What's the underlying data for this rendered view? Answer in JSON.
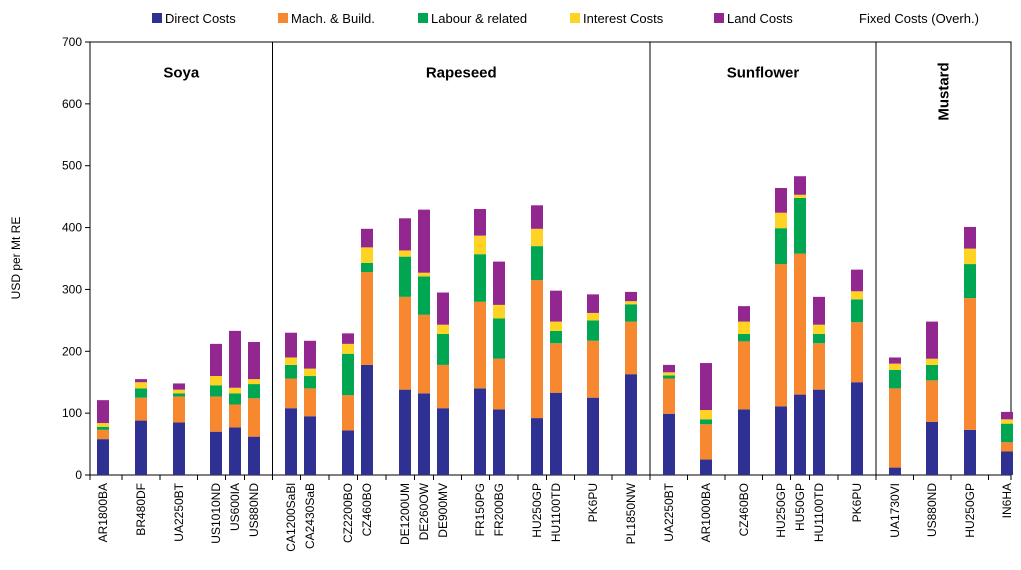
{
  "chart_data": {
    "type": "bar",
    "stacked": true,
    "ylabel": "USD per Mt RE",
    "ylim": [
      0,
      700
    ],
    "yticks": [
      0,
      100,
      200,
      300,
      400,
      500,
      600,
      700
    ],
    "grid": false,
    "legend_position": "top",
    "legend": [
      "Direct Costs",
      "Mach. & Build.",
      "Labour & related",
      "Interest Costs",
      "Land Costs",
      "Fixed Costs (Overh.)"
    ],
    "colors": [
      "#2e3192",
      "#f7882f",
      "#00a651",
      "#ffd324",
      "#92278f",
      "#ffffff"
    ],
    "groups": [
      {
        "name": "Soya",
        "label_rotated": false,
        "start": 0,
        "end": 6
      },
      {
        "name": "Rapeseed",
        "label_rotated": false,
        "start": 6,
        "end": 19
      },
      {
        "name": "Sunflower",
        "label_rotated": false,
        "start": 19,
        "end": 26
      },
      {
        "name": "Mustard",
        "label_rotated": true,
        "start": 26,
        "end": 28
      }
    ],
    "categories": [
      "AR1800BA",
      "BR480DF",
      "UA2250BT",
      "US1010ND",
      "US600IA",
      "US880ND",
      "CA1200SaBl",
      "CA2430SaB",
      "CZ2200BO",
      "CZ460BO",
      "DE1200UM",
      "DE260OW",
      "DE900MV",
      "FR150PG",
      "FR200BG",
      "HU250GP",
      "HU1100TD",
      "PK6PU",
      "PL1850NW",
      "UA2250BT",
      "AR1000BA",
      "CZ460BO",
      "HU250GP",
      "HU50GP",
      "HU1100TD",
      "PK6PU",
      "UA1730VI",
      "US880ND",
      "HU250GP",
      "IN6HA"
    ],
    "series": [
      {
        "name": "Direct Costs",
        "values": [
          58,
          88,
          85,
          70,
          77,
          62,
          108,
          95,
          72,
          178,
          138,
          132,
          108,
          140,
          106,
          92,
          133,
          125,
          163,
          99,
          25,
          106,
          111,
          130,
          138,
          150,
          12,
          86,
          73,
          38
        ]
      },
      {
        "name": "Mach. & Build.",
        "values": [
          15,
          37,
          42,
          57,
          37,
          62,
          48,
          45,
          57,
          150,
          150,
          127,
          70,
          140,
          82,
          223,
          80,
          92,
          85,
          57,
          57,
          110,
          230,
          228,
          75,
          97,
          128,
          67,
          213,
          15
        ]
      },
      {
        "name": "Labour & related",
        "values": [
          5,
          15,
          5,
          18,
          18,
          23,
          22,
          20,
          67,
          15,
          65,
          62,
          50,
          77,
          65,
          55,
          20,
          33,
          28,
          5,
          8,
          12,
          58,
          90,
          15,
          37,
          30,
          25,
          55,
          30
        ]
      },
      {
        "name": "Interest Costs",
        "values": [
          6,
          10,
          6,
          15,
          9,
          8,
          12,
          12,
          16,
          25,
          10,
          6,
          15,
          30,
          22,
          28,
          15,
          12,
          5,
          5,
          15,
          20,
          25,
          5,
          15,
          13,
          10,
          10,
          25,
          7
        ]
      },
      {
        "name": "Land Costs",
        "values": [
          37,
          5,
          10,
          52,
          92,
          60,
          40,
          45,
          17,
          30,
          52,
          102,
          52,
          43,
          70,
          38,
          50,
          30,
          15,
          12,
          76,
          25,
          40,
          30,
          45,
          35,
          10,
          60,
          35,
          12
        ]
      },
      {
        "name": "Fixed Costs (Overh.)",
        "values": [
          0,
          0,
          0,
          0,
          0,
          0,
          0,
          0,
          0,
          0,
          0,
          0,
          0,
          0,
          0,
          0,
          0,
          0,
          0,
          0,
          0,
          0,
          0,
          0,
          0,
          0,
          0,
          0,
          0,
          0
        ]
      }
    ]
  }
}
